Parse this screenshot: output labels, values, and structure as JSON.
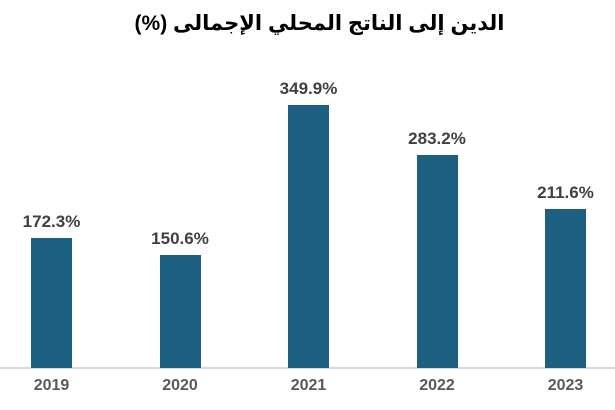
{
  "chart_title": "الدين إلى الناتج المحلي الإجمالى (%)",
  "chart_data": {
    "type": "bar",
    "title": "الدين إلى الناتج المحلي الإجمالى (%)",
    "categories": [
      "2019",
      "2020",
      "2021",
      "2022",
      "2023"
    ],
    "values": [
      172.3,
      150.6,
      349.9,
      283.2,
      211.6
    ],
    "value_labels": [
      "172.3%",
      "150.6%",
      "349.9%",
      "283.2%",
      "211.6%"
    ],
    "xlabel": "",
    "ylabel": "",
    "ylim": [
      0,
      370
    ],
    "grid": false,
    "legend": "none",
    "rtl_title": true,
    "bar_color": "#1C5F80",
    "value_label_color": "#404040",
    "tick_label_color": "#595959",
    "axis_line_color": "#D9D9D9",
    "title_color": "#000000",
    "background_color": "#FFFFFF"
  }
}
